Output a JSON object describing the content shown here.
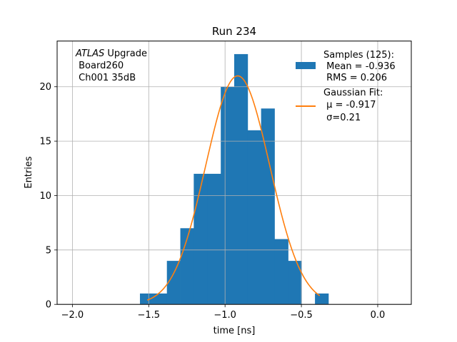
{
  "chart_data": {
    "type": "bar",
    "title": "Run 234",
    "xlabel": "time [ns]",
    "ylabel": "Entries",
    "xlim": [
      -2.1,
      0.22
    ],
    "ylim": [
      0,
      24.2
    ],
    "grid": true,
    "xticks": [
      -2.0,
      -1.5,
      -1.0,
      -0.5,
      0.0
    ],
    "xtick_labels": [
      "−2.0",
      "−1.5",
      "−1.0",
      "−0.5",
      "0.0"
    ],
    "yticks": [
      0,
      5,
      10,
      15,
      20
    ],
    "ytick_labels": [
      "0",
      "5",
      "10",
      "15",
      "20"
    ],
    "annotation": {
      "line1_italic": "ATLAS",
      "line1_rest": " Upgrade",
      "line2": " Board260",
      "line3": " Ch001 35dB"
    },
    "histogram": {
      "name": "Samples (125):",
      "color": "#1f77b4",
      "bin_edges": [
        -1.5575,
        -1.469,
        -1.381,
        -1.293,
        -1.205,
        -1.116,
        -1.028,
        -0.94,
        -0.852,
        -0.764,
        -0.676,
        -0.587,
        -0.499,
        -0.411,
        -0.323
      ],
      "counts": [
        1,
        1,
        4,
        7,
        12,
        12,
        20,
        23,
        16,
        18,
        6,
        4,
        0,
        1
      ],
      "stats_line1": " Mean = -0.936",
      "stats_line2": " RMS = 0.206"
    },
    "fit": {
      "name": "Gaussian Fit:",
      "color": "#ff7f0e",
      "mu": -0.917,
      "sigma": 0.21,
      "amplitude": 21.0,
      "x_range": [
        -1.51,
        -0.38
      ],
      "param_line1": " μ = -0.917",
      "param_line2": " σ=0.21"
    },
    "legend_position": "top-right"
  }
}
